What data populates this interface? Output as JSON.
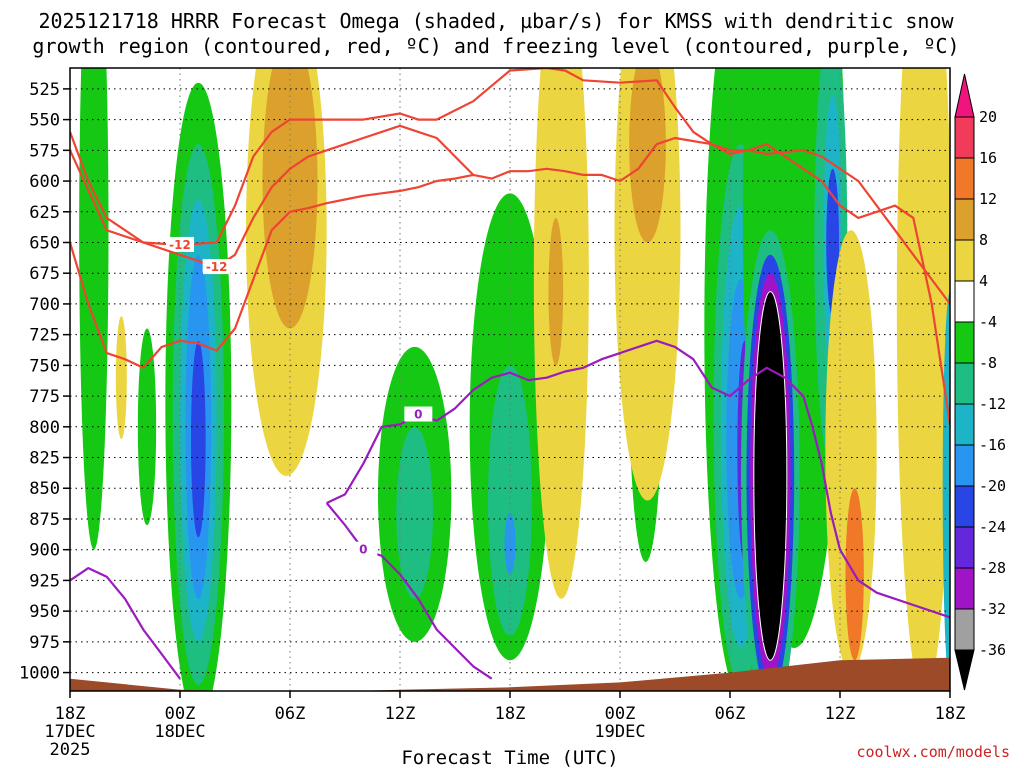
{
  "chart_data": {
    "type": "heatmap",
    "title_line1": "2025121718 HRRR Forecast Omega (shaded, µbar/s) for KMSS with dendritic snow",
    "title_line2": "growth region (contoured, red, ºC) and freezing level (contoured, purple, ºC)",
    "xlabel": "Forecast Time (UTC)",
    "credit": "coolwx.com/models",
    "pressure_levels": [
      525,
      550,
      575,
      600,
      625,
      650,
      675,
      700,
      725,
      750,
      775,
      800,
      825,
      850,
      875,
      900,
      925,
      950,
      975,
      1000
    ],
    "ylim": [
      508,
      1015
    ],
    "xlim": [
      0,
      48
    ],
    "x_ticks": [
      {
        "hour": 0,
        "label": "18Z",
        "date_label": "17DEC",
        "year_label": "2025"
      },
      {
        "hour": 6,
        "label": "00Z",
        "date_label": "18DEC",
        "year_label": ""
      },
      {
        "hour": 12,
        "label": "06Z",
        "date_label": "",
        "year_label": ""
      },
      {
        "hour": 18,
        "label": "12Z",
        "date_label": "",
        "year_label": ""
      },
      {
        "hour": 24,
        "label": "18Z",
        "date_label": "",
        "year_label": ""
      },
      {
        "hour": 30,
        "label": "00Z",
        "date_label": "19DEC",
        "year_label": ""
      },
      {
        "hour": 36,
        "label": "06Z",
        "date_label": "",
        "year_label": ""
      },
      {
        "hour": 42,
        "label": "12Z",
        "date_label": "",
        "year_label": ""
      },
      {
        "hour": 48,
        "label": "18Z",
        "date_label": "",
        "year_label": ""
      }
    ],
    "colorbar": {
      "levels": [
        20,
        16,
        12,
        8,
        4,
        -4,
        -8,
        -12,
        -16,
        -20,
        -24,
        -28,
        -32,
        -36
      ],
      "bands": [
        {
          "from": 16,
          "to": 20,
          "color": "#f03c5a"
        },
        {
          "from": 12,
          "to": 16,
          "color": "#f07828"
        },
        {
          "from": 8,
          "to": 12,
          "color": "#dca02d"
        },
        {
          "from": 4,
          "to": 8,
          "color": "#ebd641"
        },
        {
          "from": -4,
          "to": 4,
          "color": "#ffffff"
        },
        {
          "from": -8,
          "to": -4,
          "color": "#14c814"
        },
        {
          "from": -12,
          "to": -8,
          "color": "#1ebe82"
        },
        {
          "from": -16,
          "to": -12,
          "color": "#1eb4c8"
        },
        {
          "from": -20,
          "to": -16,
          "color": "#2896f0"
        },
        {
          "from": -24,
          "to": -20,
          "color": "#2846e6"
        },
        {
          "from": -28,
          "to": -24,
          "color": "#6428dc"
        },
        {
          "from": -32,
          "to": -28,
          "color": "#a014c8"
        },
        {
          "from": -36,
          "to": -32,
          "color": "#a0a0a0"
        }
      ],
      "top_arrow_color": "#f0147f",
      "bottom_arrow_color": "#000000"
    },
    "omega_features": [
      {
        "x": 1.3,
        "p": 640,
        "rx": 0.8,
        "ry": 260,
        "value": -6
      },
      {
        "x": 4.2,
        "p": 800,
        "rx": 0.5,
        "ry": 80,
        "value": -6
      },
      {
        "x": 7.0,
        "p": 780,
        "rx": 1.8,
        "ry": 260,
        "value": -6
      },
      {
        "x": 7.0,
        "p": 790,
        "rx": 1.4,
        "ry": 220,
        "value": -10
      },
      {
        "x": 7.0,
        "p": 795,
        "rx": 1.0,
        "ry": 180,
        "value": -14
      },
      {
        "x": 7.0,
        "p": 800,
        "rx": 0.7,
        "ry": 140,
        "value": -18
      },
      {
        "x": 7.0,
        "p": 810,
        "rx": 0.4,
        "ry": 80,
        "value": -22
      },
      {
        "x": 2.8,
        "p": 760,
        "rx": 0.3,
        "ry": 50,
        "value": 6
      },
      {
        "x": 11.8,
        "p": 640,
        "rx": 2.2,
        "ry": 200,
        "value": 6
      },
      {
        "x": 12.0,
        "p": 600,
        "rx": 1.5,
        "ry": 120,
        "value": 10
      },
      {
        "x": 18.8,
        "p": 855,
        "rx": 2.0,
        "ry": 120,
        "value": -6
      },
      {
        "x": 18.8,
        "p": 870,
        "rx": 1.0,
        "ry": 70,
        "value": -10
      },
      {
        "x": 24.0,
        "p": 800,
        "rx": 2.2,
        "ry": 190,
        "value": -6
      },
      {
        "x": 24.0,
        "p": 860,
        "rx": 1.2,
        "ry": 110,
        "value": -10
      },
      {
        "x": 24.0,
        "p": 895,
        "rx": 0.3,
        "ry": 25,
        "value": -18
      },
      {
        "x": 26.8,
        "p": 680,
        "rx": 1.5,
        "ry": 260,
        "value": 6
      },
      {
        "x": 26.5,
        "p": 690,
        "rx": 0.4,
        "ry": 60,
        "value": 10
      },
      {
        "x": 31.4,
        "p": 760,
        "rx": 0.9,
        "ry": 150,
        "value": -6
      },
      {
        "x": 31.5,
        "p": 640,
        "rx": 1.8,
        "ry": 220,
        "value": 6
      },
      {
        "x": 31.5,
        "p": 570,
        "rx": 1.0,
        "ry": 80,
        "value": 10
      },
      {
        "x": 36.6,
        "p": 720,
        "rx": 2.0,
        "ry": 300,
        "value": -6
      },
      {
        "x": 36.6,
        "p": 790,
        "rx": 1.5,
        "ry": 220,
        "value": -10
      },
      {
        "x": 36.6,
        "p": 800,
        "rx": 1.1,
        "ry": 180,
        "value": -14
      },
      {
        "x": 36.6,
        "p": 810,
        "rx": 0.8,
        "ry": 130,
        "value": -18
      },
      {
        "x": 36.8,
        "p": 820,
        "rx": 0.4,
        "ry": 90,
        "value": -26
      },
      {
        "x": 39.5,
        "p": 630,
        "rx": 2.8,
        "ry": 350,
        "value": -6
      },
      {
        "x": 38.2,
        "p": 840,
        "rx": 1.6,
        "ry": 200,
        "value": -10
      },
      {
        "x": 38.2,
        "p": 840,
        "rx": 1.3,
        "ry": 180,
        "value": -22
      },
      {
        "x": 38.2,
        "p": 840,
        "rx": 1.1,
        "ry": 165,
        "value": -30
      },
      {
        "x": 38.2,
        "p": 840,
        "rx": 0.9,
        "ry": 150,
        "value": -40
      },
      {
        "x": 41.5,
        "p": 650,
        "rx": 0.9,
        "ry": 180,
        "value": -10
      },
      {
        "x": 41.6,
        "p": 650,
        "rx": 0.5,
        "ry": 120,
        "value": -14
      },
      {
        "x": 41.6,
        "p": 650,
        "rx": 0.35,
        "ry": 60,
        "value": -22
      },
      {
        "x": 42.6,
        "p": 820,
        "rx": 1.4,
        "ry": 180,
        "value": 6
      },
      {
        "x": 42.8,
        "p": 920,
        "rx": 0.5,
        "ry": 70,
        "value": 12
      },
      {
        "x": 46.6,
        "p": 700,
        "rx": 1.5,
        "ry": 320,
        "value": 6
      },
      {
        "x": 48.0,
        "p": 850,
        "rx": 0.4,
        "ry": 160,
        "value": -14
      }
    ],
    "terrain": {
      "color": "#9c4a27",
      "hours": [
        0,
        6,
        12,
        18,
        24,
        30,
        36,
        42,
        48
      ],
      "surface_p": [
        1005,
        1014,
        1016,
        1014,
        1012,
        1008,
        1000,
        990,
        988
      ]
    },
    "contours": [
      {
        "name": "dgz-top",
        "kind": "dgz",
        "label": "-12",
        "label_index": 3,
        "color": "#ee4433",
        "points": [
          [
            0,
            575
          ],
          [
            2,
            640
          ],
          [
            4,
            650
          ],
          [
            6,
            652
          ],
          [
            8,
            650
          ],
          [
            9,
            620
          ],
          [
            10,
            580
          ],
          [
            11,
            560
          ],
          [
            12,
            550
          ],
          [
            14,
            550
          ],
          [
            16,
            550
          ],
          [
            18,
            545
          ],
          [
            19,
            550
          ],
          [
            20,
            550
          ],
          [
            22,
            535
          ],
          [
            24,
            510
          ],
          [
            26,
            508
          ],
          [
            27,
            510
          ],
          [
            28,
            518
          ],
          [
            30,
            520
          ],
          [
            32,
            518
          ],
          [
            33,
            540
          ],
          [
            34,
            560
          ],
          [
            35,
            570
          ],
          [
            36,
            578
          ],
          [
            37,
            575
          ],
          [
            38,
            570
          ],
          [
            39,
            580
          ],
          [
            40,
            590
          ],
          [
            41,
            600
          ],
          [
            42,
            620
          ],
          [
            43,
            630
          ],
          [
            44,
            625
          ],
          [
            45,
            620
          ],
          [
            46,
            630
          ],
          [
            47,
            700
          ],
          [
            48,
            798
          ]
        ]
      },
      {
        "name": "dgz-bottom",
        "kind": "dgz",
        "label": "-12",
        "label_index": 5,
        "color": "#ee4433",
        "points": [
          [
            0,
            560
          ],
          [
            1,
            600
          ],
          [
            2,
            630
          ],
          [
            4,
            650
          ],
          [
            6,
            660
          ],
          [
            8,
            670
          ],
          [
            9,
            660
          ],
          [
            10,
            630
          ],
          [
            11,
            605
          ],
          [
            12,
            590
          ],
          [
            13,
            580
          ],
          [
            14,
            575
          ],
          [
            15,
            570
          ],
          [
            16,
            565
          ],
          [
            17,
            560
          ],
          [
            18,
            555
          ],
          [
            19,
            560
          ],
          [
            20,
            565
          ],
          [
            21,
            580
          ],
          [
            22,
            595
          ],
          [
            23,
            598
          ],
          [
            24,
            592
          ],
          [
            25,
            592
          ],
          [
            26,
            590
          ],
          [
            27,
            592
          ],
          [
            28,
            595
          ],
          [
            29,
            595
          ],
          [
            30,
            600
          ],
          [
            31,
            590
          ],
          [
            32,
            570
          ],
          [
            33,
            565
          ],
          [
            35,
            570
          ],
          [
            36,
            575
          ],
          [
            37,
            575
          ],
          [
            38,
            578
          ],
          [
            40,
            575
          ],
          [
            41,
            580
          ],
          [
            42,
            590
          ],
          [
            43,
            600
          ],
          [
            44,
            620
          ],
          [
            45,
            640
          ],
          [
            46,
            660
          ],
          [
            47,
            680
          ],
          [
            48,
            700
          ]
        ]
      },
      {
        "name": "dgz-lower",
        "kind": "dgz",
        "label": "-12",
        "label_index": -1,
        "color": "#ee4433",
        "points": [
          [
            0,
            650
          ],
          [
            1,
            700
          ],
          [
            2,
            740
          ],
          [
            3,
            745
          ],
          [
            4,
            752
          ],
          [
            5,
            735
          ],
          [
            6,
            730
          ],
          [
            7,
            732
          ],
          [
            8,
            738
          ],
          [
            9,
            720
          ],
          [
            10,
            680
          ],
          [
            11,
            640
          ],
          [
            12,
            625
          ],
          [
            13,
            622
          ],
          [
            14,
            618
          ],
          [
            15,
            615
          ],
          [
            16,
            612
          ],
          [
            17,
            610
          ],
          [
            18,
            608
          ],
          [
            19,
            605
          ],
          [
            20,
            600
          ],
          [
            21,
            598
          ],
          [
            22,
            595
          ]
        ]
      },
      {
        "name": "freezing-level-main",
        "kind": "freezing",
        "label": "0",
        "label_index": 6,
        "color": "#9a1bbf",
        "points": [
          [
            14,
            862
          ],
          [
            15,
            855
          ],
          [
            16,
            830
          ],
          [
            16.5,
            815
          ],
          [
            17,
            800
          ],
          [
            18,
            798
          ],
          [
            19,
            790
          ],
          [
            20,
            795
          ],
          [
            21,
            785
          ],
          [
            22,
            770
          ],
          [
            23,
            760
          ],
          [
            24,
            756
          ],
          [
            25,
            762
          ],
          [
            26,
            760
          ],
          [
            27,
            755
          ],
          [
            28,
            752
          ],
          [
            29,
            745
          ],
          [
            30,
            740
          ],
          [
            31,
            735
          ],
          [
            32,
            730
          ],
          [
            33,
            735
          ],
          [
            34,
            745
          ],
          [
            35,
            768
          ],
          [
            36,
            775
          ],
          [
            37,
            762
          ],
          [
            38,
            752
          ],
          [
            39,
            760
          ],
          [
            40,
            775
          ],
          [
            40.5,
            800
          ],
          [
            41,
            830
          ],
          [
            41.5,
            870
          ],
          [
            42,
            900
          ],
          [
            43,
            925
          ],
          [
            44,
            935
          ],
          [
            46,
            945
          ],
          [
            48,
            955
          ]
        ]
      },
      {
        "name": "freezing-level-lower",
        "kind": "freezing",
        "label": "0",
        "label_index": 2,
        "color": "#9a1bbf",
        "points": [
          [
            14,
            862
          ],
          [
            15,
            880
          ],
          [
            16,
            900
          ],
          [
            17,
            905
          ],
          [
            18,
            920
          ],
          [
            19,
            940
          ],
          [
            20,
            965
          ],
          [
            21,
            980
          ],
          [
            22,
            995
          ],
          [
            23,
            1005
          ]
        ]
      },
      {
        "name": "freezing-level-left",
        "kind": "freezing",
        "label": "",
        "label_index": -1,
        "color": "#9a1bbf",
        "points": [
          [
            0,
            925
          ],
          [
            1,
            915
          ],
          [
            2,
            922
          ],
          [
            3,
            940
          ],
          [
            4,
            965
          ],
          [
            5,
            985
          ],
          [
            6,
            1005
          ]
        ]
      }
    ]
  }
}
